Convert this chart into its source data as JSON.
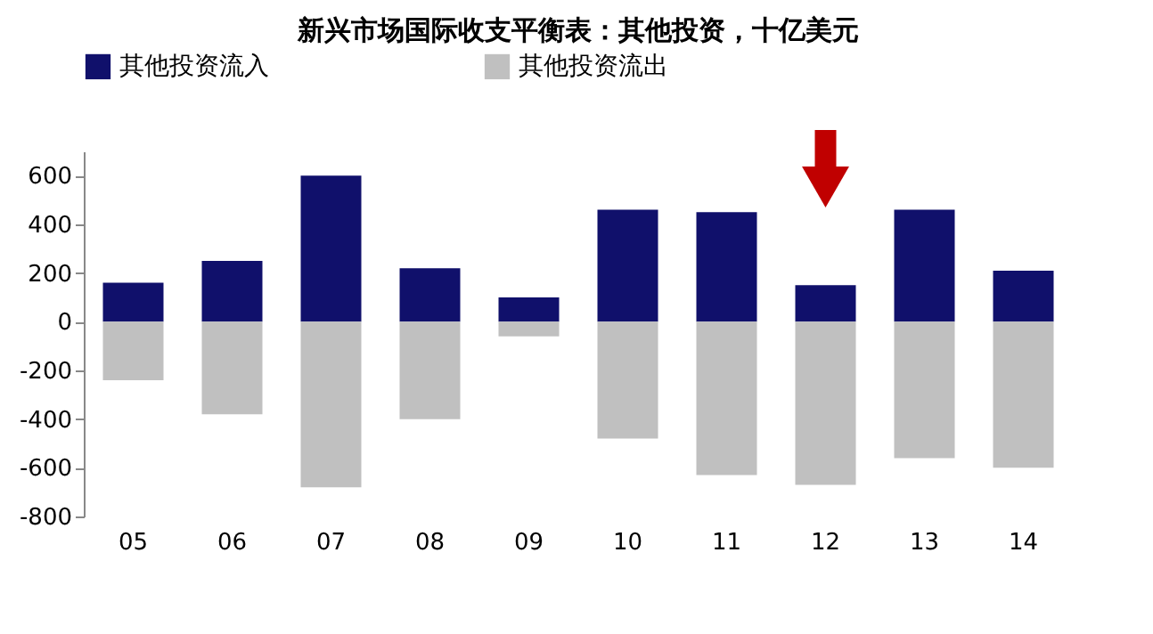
{
  "chart_data": {
    "type": "bar",
    "title": "新兴市场国际收支平衡表：其他投资，十亿美元",
    "categories": [
      "05",
      "06",
      "07",
      "08",
      "09",
      "10",
      "11",
      "12",
      "13",
      "14"
    ],
    "series": [
      {
        "name": "其他投资流入",
        "color": "#10106b",
        "values": [
          160,
          250,
          600,
          220,
          100,
          460,
          450,
          150,
          460,
          210
        ]
      },
      {
        "name": "其他投资流出",
        "color": "#c0c0c0",
        "values": [
          -240,
          -380,
          -680,
          -400,
          -60,
          -480,
          -630,
          -670,
          -560,
          -600
        ]
      }
    ],
    "ylim": [
      -800,
      700
    ],
    "yticks": [
      -800,
      -600,
      -400,
      -200,
      0,
      200,
      400,
      600
    ],
    "grid": false,
    "legend": "top",
    "stacked": true
  }
}
